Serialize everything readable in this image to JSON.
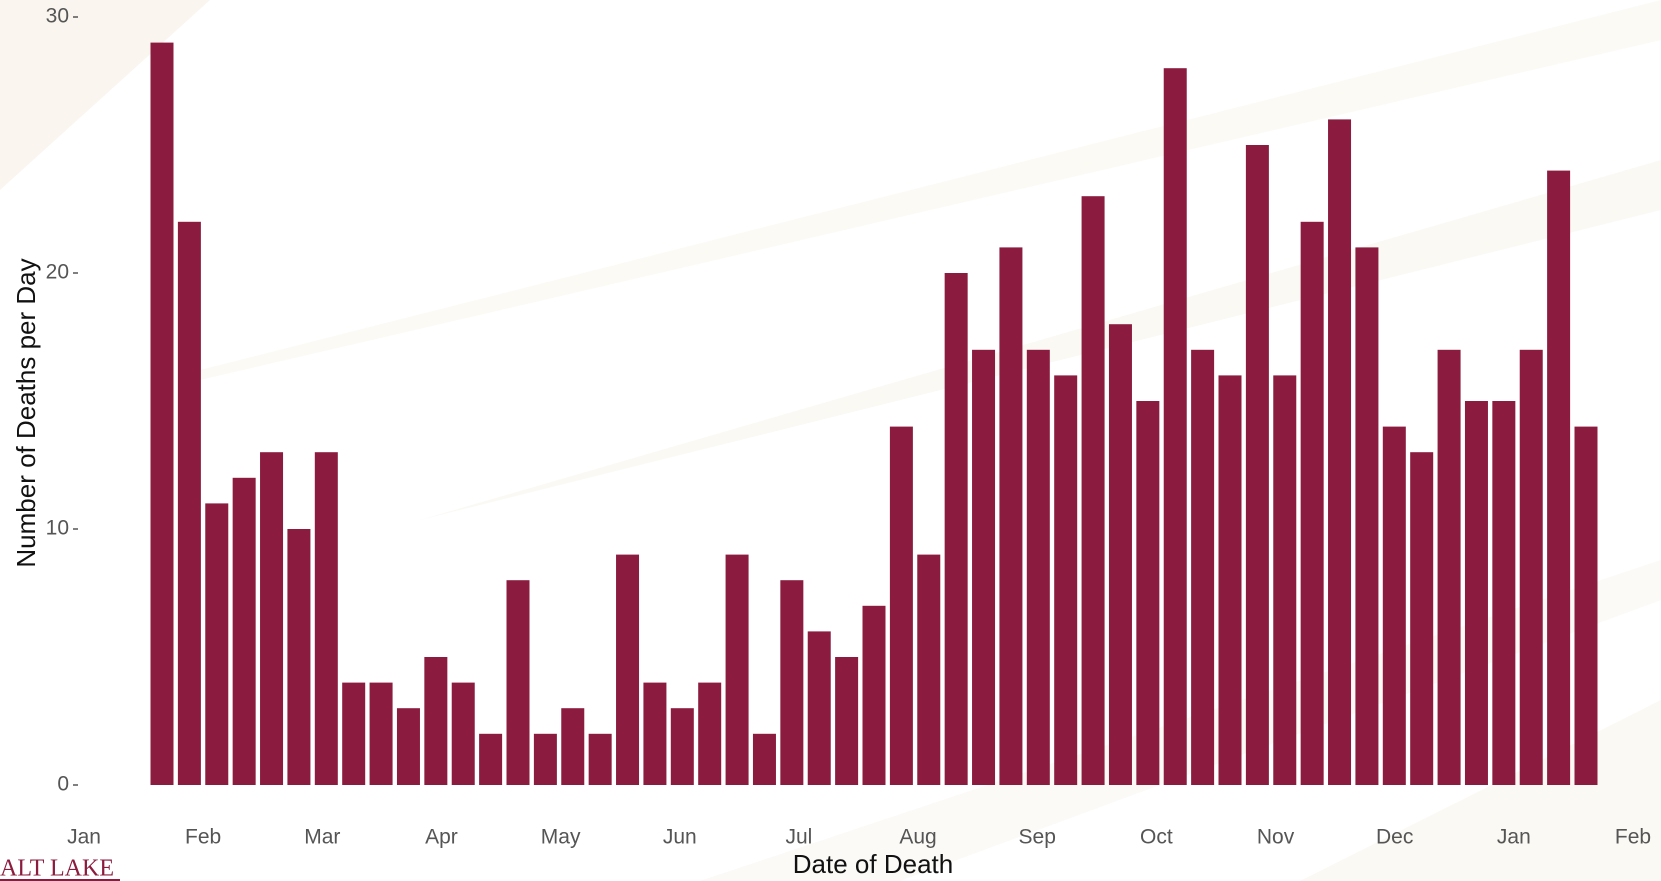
{
  "chart_data": {
    "type": "bar",
    "xlabel": "Date of Death",
    "ylabel": "Number of Deaths per Day",
    "categories": [
      null,
      null,
      null,
      null,
      null,
      null,
      null,
      null,
      null,
      null,
      null,
      null,
      null,
      null,
      null,
      null,
      null,
      null,
      null,
      null,
      null,
      null,
      null,
      null,
      null,
      null,
      null,
      null,
      null,
      null,
      null,
      null,
      null,
      null,
      null,
      null,
      null,
      null,
      null,
      null,
      null,
      null,
      null,
      null,
      null,
      null,
      null,
      null,
      null,
      null,
      null,
      null,
      null
    ],
    "values": [
      29,
      22,
      11,
      12,
      13,
      10,
      13,
      4,
      4,
      3,
      5,
      4,
      2,
      8,
      2,
      3,
      2,
      9,
      4,
      3,
      4,
      9,
      2,
      8,
      6,
      5,
      7,
      14,
      9,
      20,
      17,
      21,
      17,
      16,
      23,
      18,
      15,
      28,
      17,
      16,
      25,
      16,
      22,
      26,
      21,
      14,
      13,
      17,
      15,
      15,
      17,
      24,
      14
    ],
    "color": "#8b1c3f",
    "ylim": [
      0,
      30
    ],
    "yticks": [
      0,
      10,
      20,
      30
    ],
    "xticks": [
      "Jan",
      "Feb",
      "Mar",
      "Apr",
      "May",
      "Jun",
      "Jul",
      "Aug",
      "Sep",
      "Oct",
      "Nov",
      "Dec",
      "Jan",
      "Feb"
    ],
    "grid": false
  },
  "footer_logo": "ALT LAKE"
}
